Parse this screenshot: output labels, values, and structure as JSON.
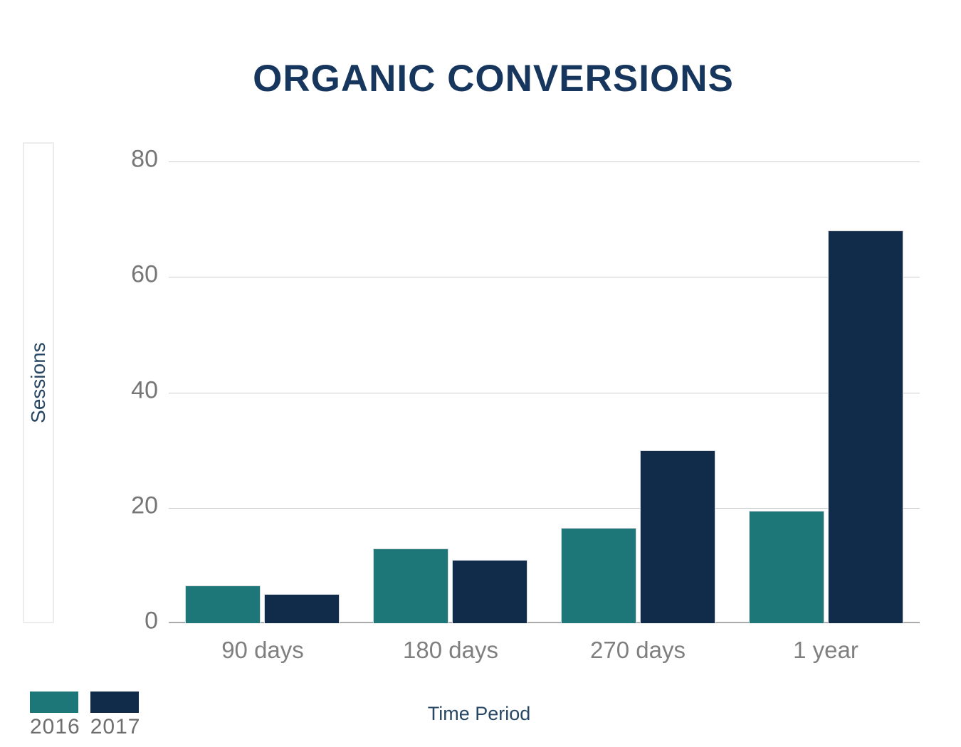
{
  "title": "ORGANIC CONVERSIONS",
  "chart_data": {
    "type": "bar",
    "title": "ORGANIC CONVERSIONS",
    "categories": [
      "90 days",
      "180 days",
      "270 days",
      "1 year"
    ],
    "series": [
      {
        "name": "2016",
        "color": "#1d7677",
        "values": [
          6.5,
          13,
          16.5,
          19.5
        ]
      },
      {
        "name": "2017",
        "color": "#112c4b",
        "values": [
          5,
          11,
          30,
          68
        ]
      }
    ],
    "xlabel": "Time Period",
    "ylabel": "Sessions",
    "ylim": [
      0,
      80
    ],
    "yticks": [
      0,
      20,
      40,
      60,
      80
    ],
    "grid": "horizontal",
    "legend_position": "bottom-left"
  },
  "colors": {
    "title_text": "#17365d",
    "axis_title_text": "#274764",
    "y_tick_text": "#767676",
    "x_tick_text": "#7f7f7f",
    "gridline": "#cccccc",
    "baseline": "#ababab",
    "series_2016": "#1d7677",
    "series_2017": "#112c4b",
    "legend_text": "#6e6e6e"
  }
}
